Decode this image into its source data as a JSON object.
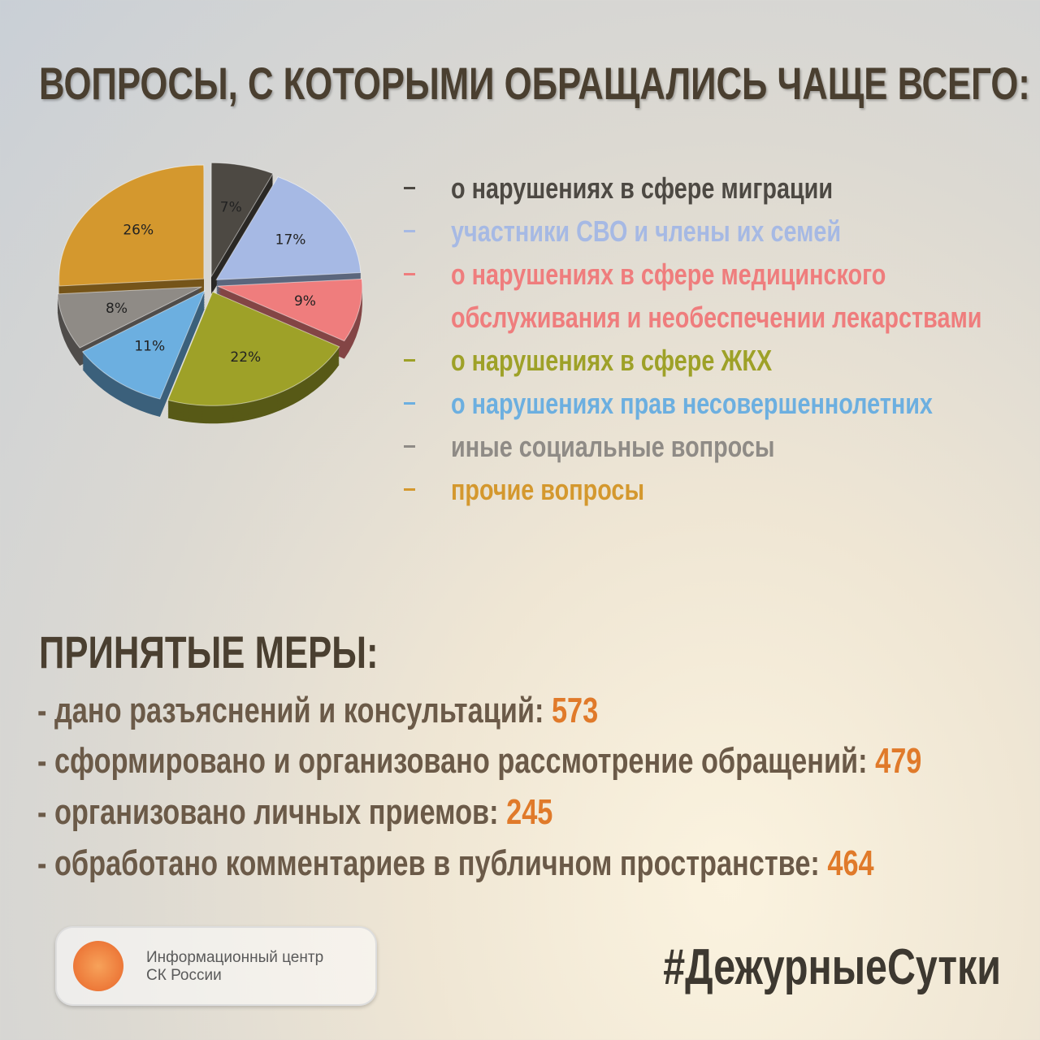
{
  "title": "ВОПРОСЫ, С КОТОРЫМИ ОБРАЩАЛИСЬ ЧАЩЕ ВСЕГО:",
  "chart_data": {
    "type": "pie",
    "categories": [
      "о нарушениях в сфере миграции",
      "участники СВО и члены их семей",
      "о нарушениях в сфере медицинского обслуживания и необеспечении лекарствами",
      "о нарушениях в сфере ЖКХ",
      "о нарушениях прав несовершеннолетних",
      "иные социальные вопросы",
      "прочие вопросы"
    ],
    "values": [
      7,
      17,
      9,
      22,
      11,
      8,
      26
    ],
    "value_labels": [
      "7%",
      "17%",
      "9%",
      "22%",
      "11%",
      "8%",
      "26%"
    ],
    "colors": [
      "#4d4943",
      "#a6b9e4",
      "#ef7d7d",
      "#9ea128",
      "#6cafe0",
      "#8f8b86",
      "#d4982e"
    ]
  },
  "measures": {
    "title": "ПРИНЯТЫЕ МЕРЫ:",
    "items": [
      {
        "label": "- дано разъяснений и консультаций:",
        "value": 573
      },
      {
        "label": "- сформировано и организовано рассмотрение обращений:",
        "value": 479
      },
      {
        "label": "- организовано личных приемов:",
        "value": 245
      },
      {
        "label": "- обработано комментариев в публичном пространстве:",
        "value": 464
      }
    ]
  },
  "footer": {
    "logo_text": [
      "Информационный центр",
      "СК России"
    ],
    "hashtag": "#ДежурныеСутки"
  }
}
